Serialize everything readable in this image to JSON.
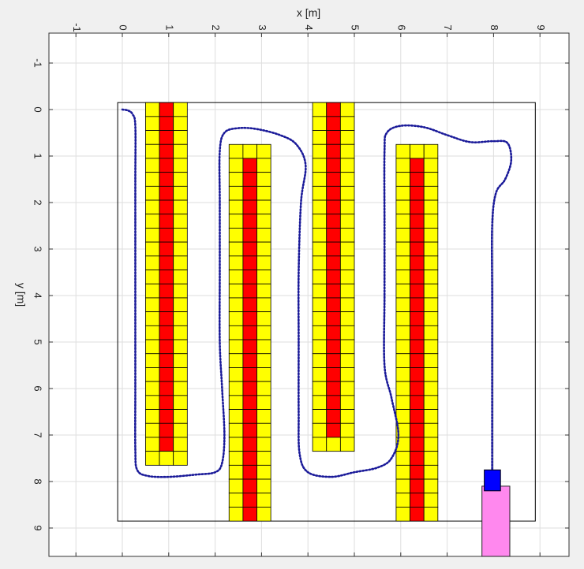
{
  "chart_data": {
    "type": "scatter",
    "xlabel": "x [m]",
    "ylabel": "y [m]",
    "xlim": [
      -1.1,
      9.6
    ],
    "ylim": [
      -1.6,
      9.6
    ],
    "x_ticks": [
      "-1",
      "0",
      "1",
      "2",
      "3",
      "4",
      "5",
      "6",
      "7",
      "8",
      "9"
    ],
    "y_ticks": [
      "-1",
      "0",
      "1",
      "2",
      "3",
      "4",
      "5",
      "6",
      "7",
      "8",
      "9"
    ],
    "grid": true,
    "boundary": {
      "x": [
        -0.1,
        8.9
      ],
      "y": [
        -0.15,
        8.85
      ]
    },
    "cell_size_m": 0.3,
    "rows": [
      {
        "x_range": [
          0.5,
          1.4
        ],
        "y_range": [
          -0.15,
          7.65
        ],
        "red_x": [
          0.8,
          1.1
        ],
        "red_y": [
          -0.15,
          7.35
        ]
      },
      {
        "x_range": [
          2.3,
          3.2
        ],
        "y_range": [
          0.75,
          8.85
        ],
        "red_x": [
          2.6,
          2.9
        ],
        "red_y": [
          1.05,
          8.85
        ]
      },
      {
        "x_range": [
          4.1,
          5.0
        ],
        "y_range": [
          -0.15,
          7.35
        ],
        "red_x": [
          4.4,
          4.7
        ],
        "red_y": [
          -0.15,
          7.05
        ]
      },
      {
        "x_range": [
          5.9,
          6.8
        ],
        "y_range": [
          0.75,
          8.85
        ],
        "red_x": [
          6.2,
          6.5
        ],
        "red_y": [
          1.05,
          8.85
        ]
      }
    ],
    "path": [
      [
        0.0,
        0.0
      ],
      [
        0.12,
        0.02
      ],
      [
        0.22,
        0.1
      ],
      [
        0.28,
        0.35
      ],
      [
        0.28,
        1.5
      ],
      [
        0.28,
        3.0
      ],
      [
        0.28,
        4.5
      ],
      [
        0.28,
        6.0
      ],
      [
        0.28,
        7.3
      ],
      [
        0.32,
        7.75
      ],
      [
        0.55,
        7.88
      ],
      [
        1.0,
        7.9
      ],
      [
        1.6,
        7.85
      ],
      [
        2.0,
        7.8
      ],
      [
        2.15,
        7.6
      ],
      [
        2.2,
        7.0
      ],
      [
        2.15,
        6.0
      ],
      [
        2.1,
        5.0
      ],
      [
        2.1,
        3.5
      ],
      [
        2.1,
        2.0
      ],
      [
        2.1,
        0.9
      ],
      [
        2.2,
        0.5
      ],
      [
        2.5,
        0.4
      ],
      [
        2.9,
        0.42
      ],
      [
        3.4,
        0.55
      ],
      [
        3.75,
        0.75
      ],
      [
        3.95,
        1.2
      ],
      [
        3.85,
        2.0
      ],
      [
        3.8,
        3.5
      ],
      [
        3.8,
        5.0
      ],
      [
        3.8,
        6.5
      ],
      [
        3.82,
        7.4
      ],
      [
        4.0,
        7.8
      ],
      [
        4.5,
        7.9
      ],
      [
        5.0,
        7.8
      ],
      [
        5.5,
        7.7
      ],
      [
        5.8,
        7.5
      ],
      [
        5.95,
        7.0
      ],
      [
        5.8,
        6.2
      ],
      [
        5.65,
        5.5
      ],
      [
        5.65,
        4.0
      ],
      [
        5.65,
        2.5
      ],
      [
        5.65,
        0.9
      ],
      [
        5.7,
        0.5
      ],
      [
        6.0,
        0.35
      ],
      [
        6.5,
        0.38
      ],
      [
        7.0,
        0.55
      ],
      [
        7.5,
        0.7
      ],
      [
        8.0,
        0.68
      ],
      [
        8.3,
        0.72
      ],
      [
        8.38,
        1.1
      ],
      [
        8.25,
        1.5
      ],
      [
        8.05,
        1.8
      ],
      [
        7.97,
        2.5
      ],
      [
        7.97,
        4.0
      ],
      [
        7.97,
        5.5
      ],
      [
        7.97,
        7.0
      ],
      [
        7.97,
        7.75
      ]
    ],
    "robot": {
      "x": [
        7.8,
        8.15
      ],
      "y": [
        7.75,
        8.2
      ],
      "color": "#0000ff"
    },
    "vehicle": {
      "x": [
        7.75,
        8.35
      ],
      "y": [
        8.1,
        10.0
      ],
      "color": "#ff88ee"
    },
    "colors": {
      "cell_yellow": "#ffff00",
      "cell_red": "#ff0000",
      "path": "#1a1a99"
    }
  }
}
